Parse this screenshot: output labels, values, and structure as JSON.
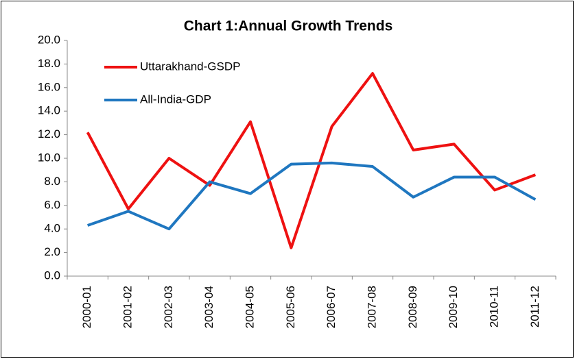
{
  "chart_data": {
    "type": "line",
    "title": "Chart 1:Annual Growth Trends",
    "categories": [
      "2000-01",
      "2001-02",
      "2002-03",
      "2003-04",
      "2004-05",
      "2005-06",
      "2006-07",
      "2007-08",
      "2008-09",
      "2009-10",
      "2010-11",
      "2011-12"
    ],
    "series": [
      {
        "name": "Uttarakhand-GSDP",
        "color": "#ee1111",
        "values": [
          12.2,
          5.7,
          10.0,
          7.7,
          13.1,
          2.4,
          12.7,
          17.2,
          10.7,
          11.2,
          7.3,
          8.6
        ]
      },
      {
        "name": "All-India-GDP",
        "color": "#1f77c0",
        "values": [
          4.3,
          5.5,
          4.0,
          8.0,
          7.0,
          9.5,
          9.6,
          9.3,
          6.7,
          8.4,
          8.4,
          6.5
        ]
      }
    ],
    "ylim": [
      0,
      20
    ],
    "yticks": [
      {
        "value": 0,
        "label": "0.0"
      },
      {
        "value": 2,
        "label": "2.0"
      },
      {
        "value": 4,
        "label": "4.0"
      },
      {
        "value": 6,
        "label": "6.0"
      },
      {
        "value": 8,
        "label": "8.0"
      },
      {
        "value": 10,
        "label": "10.0"
      },
      {
        "value": 12,
        "label": "12.0"
      },
      {
        "value": 14,
        "label": "14.0"
      },
      {
        "value": 16,
        "label": "16.0"
      },
      {
        "value": 18,
        "label": "18.0"
      },
      {
        "value": 20,
        "label": "20.0"
      }
    ],
    "legend": "upper left",
    "grid": false
  }
}
